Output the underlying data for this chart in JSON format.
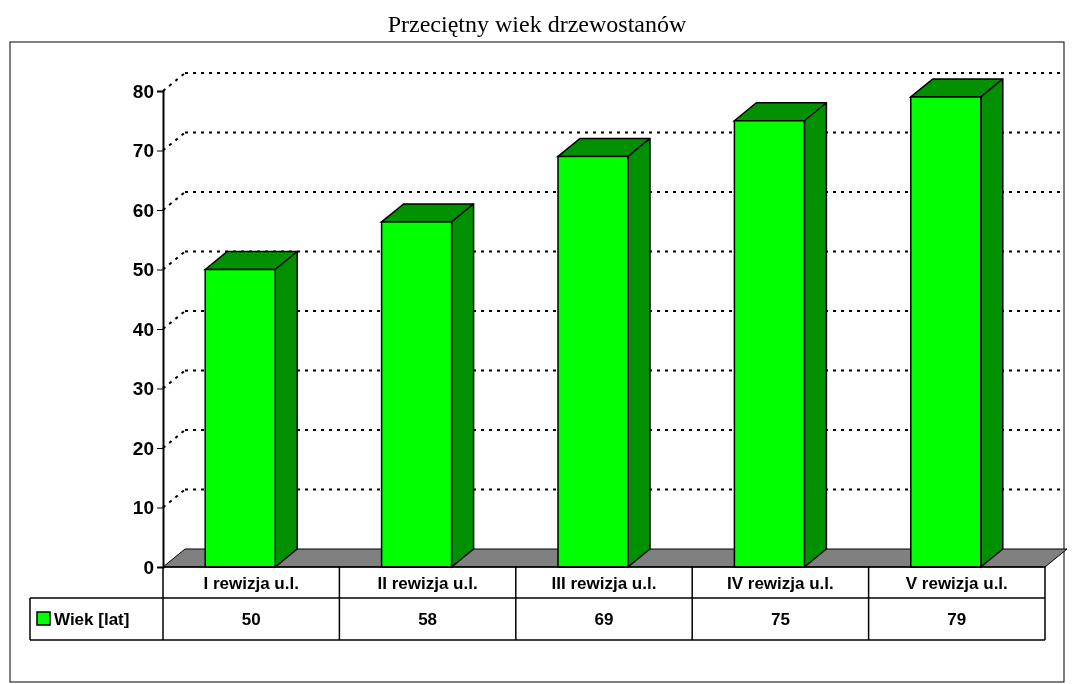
{
  "chart_data": {
    "type": "bar",
    "title": "Przeciętny wiek drzewostanów",
    "categories": [
      "I rewizja u.l.",
      "II rewizja u.l.",
      "III rewizja u.l.",
      "IV rewizja u.l.",
      "V rewizja u.l."
    ],
    "series": [
      {
        "name": "Wiek [lat]",
        "color": "#00ff00",
        "values": [
          50,
          58,
          69,
          75,
          79
        ]
      }
    ],
    "ylim": [
      0,
      80
    ],
    "yticks": [
      0,
      10,
      20,
      30,
      40,
      50,
      60,
      70,
      80
    ],
    "grid": "y",
    "line_style": "dotted",
    "data_labels": true,
    "legend": "bottom left"
  }
}
